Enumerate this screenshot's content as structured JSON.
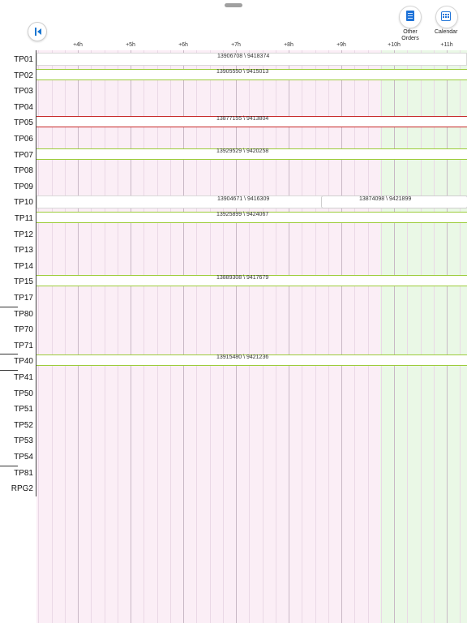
{
  "toolbar": {
    "other_orders_line1": "Other",
    "other_orders_line2": "Orders",
    "calendar_label": "Calendar",
    "collapse_icon": "collapse-left-icon",
    "other_orders_icon": "document-icon",
    "calendar_icon": "calendar-icon"
  },
  "timeline": {
    "hours": [
      "+4h",
      "+5h",
      "+6h",
      "+7h",
      "+8h",
      "+9h",
      "+10h",
      "+11h"
    ],
    "zone_colors": {
      "past": "#fbeef6",
      "future": "#eaf8e6",
      "hour_line": "#c9b8c6",
      "sub_line": "#ead8e6"
    }
  },
  "resources": [
    "TP01",
    "TP02",
    "TP03",
    "TP04",
    "TP05",
    "TP06",
    "TP07",
    "TP08",
    "TP09",
    "TP10",
    "TP11",
    "TP12",
    "TP13",
    "TP14",
    "TP15",
    "TP17",
    "TP80",
    "TP70",
    "TP71",
    "TP40",
    "TP41",
    "TP50",
    "TP51",
    "TP52",
    "TP53",
    "TP54",
    "TP81",
    "RPG2"
  ],
  "orders": [
    {
      "row": 0,
      "text": "13906708 \\ 9418374",
      "status": "plain"
    },
    {
      "row": 1,
      "text": "13905550 \\ 9415013",
      "status": "active"
    },
    {
      "row": 4,
      "text": "13877155 \\ 9413804",
      "status": "alert"
    },
    {
      "row": 6,
      "text": "13929529 \\ 9420258",
      "status": "active"
    },
    {
      "row": 9,
      "text": "13904671 \\ 9416309",
      "status": "plain",
      "second_text": "13874098 \\ 9421899"
    },
    {
      "row": 10,
      "text": "13925899 \\ 9424067",
      "status": "active"
    },
    {
      "row": 14,
      "text": "13889308 \\ 9417679",
      "status": "active"
    },
    {
      "row": 19,
      "text": "13915480 \\ 9421236",
      "status": "active"
    }
  ]
}
